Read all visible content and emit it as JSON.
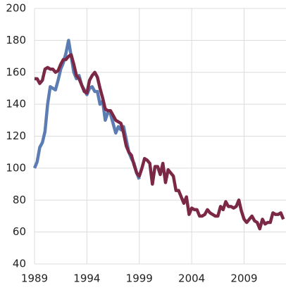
{
  "chart_data": {
    "type": "line",
    "x": [
      1989,
      1989.25,
      1989.5,
      1989.75,
      1990,
      1990.25,
      1990.5,
      1990.75,
      1991,
      1991.25,
      1991.5,
      1991.75,
      1992,
      1992.25,
      1992.5,
      1992.75,
      1993,
      1993.25,
      1993.5,
      1993.75,
      1994,
      1994.25,
      1994.5,
      1994.75,
      1995,
      1995.25,
      1995.5,
      1995.75,
      1996,
      1996.25,
      1996.5,
      1996.75,
      1997,
      1997.25,
      1997.5,
      1997.75,
      1998,
      1998.25,
      1998.5,
      1998.75,
      1999,
      1999.25,
      1999.5,
      1999.75,
      2000,
      2000.25,
      2000.5,
      2000.75,
      2001,
      2001.25,
      2001.5,
      2001.75,
      2002,
      2002.25,
      2002.5,
      2002.75,
      2003,
      2003.25,
      2003.5,
      2003.75,
      2004,
      2004.25,
      2004.5,
      2004.75,
      2005,
      2005.25,
      2005.5,
      2005.75,
      2006,
      2006.25,
      2006.5,
      2006.75,
      2007,
      2007.25,
      2007.5,
      2007.75,
      2008,
      2008.25,
      2008.5,
      2008.75,
      2009,
      2009.25,
      2009.5,
      2009.75,
      2010,
      2010.25,
      2010.5,
      2010.75,
      2011,
      2011.25,
      2011.5,
      2011.75,
      2012,
      2012.25,
      2012.5,
      2012.75
    ],
    "series": [
      {
        "color": "#5b7db4",
        "values": [
          100,
          104,
          113,
          116,
          123,
          140,
          151,
          150,
          149,
          155,
          162,
          166,
          172,
          180,
          170,
          160,
          156,
          158,
          152,
          149,
          146,
          150,
          151,
          148,
          148,
          140,
          142,
          130,
          135,
          134,
          128,
          122,
          126,
          124,
          126,
          118,
          110,
          106,
          103,
          97,
          93,
          null,
          null,
          null,
          null,
          null,
          null,
          null,
          null,
          null,
          null,
          null,
          null,
          null,
          null,
          null,
          null,
          null,
          null,
          null,
          null,
          null,
          null,
          null,
          null,
          null,
          null,
          null,
          null,
          null,
          null,
          null,
          null,
          null,
          null,
          null,
          null,
          null,
          null,
          null,
          null,
          null,
          null,
          null,
          null,
          null,
          null,
          null,
          null,
          null,
          null,
          null,
          null,
          null,
          null,
          null
        ]
      },
      {
        "color": "#7a2845",
        "values": [
          156,
          156,
          153,
          155,
          162,
          163,
          162,
          162,
          160,
          161,
          165,
          168,
          168,
          170,
          171,
          165,
          158,
          156,
          152,
          148,
          147,
          155,
          158,
          160,
          157,
          150,
          144,
          137,
          136,
          136,
          133,
          130,
          129,
          128,
          122,
          114,
          110,
          108,
          102,
          97,
          95,
          100,
          106,
          105,
          103,
          90,
          101,
          101,
          96,
          103,
          91,
          99,
          97,
          95,
          86,
          86,
          82,
          78,
          82,
          71,
          75,
          74,
          74,
          70,
          70,
          71,
          74,
          72,
          71,
          70,
          70,
          76,
          74,
          79,
          76,
          76,
          75,
          76,
          80,
          73,
          68,
          66,
          68,
          70,
          67,
          66,
          62,
          68,
          65,
          66,
          66,
          72,
          71,
          71,
          72,
          68
        ]
      }
    ],
    "xlim": [
      1989,
      2013
    ],
    "ylim": [
      40,
      200
    ],
    "xticks": [
      1989,
      1994,
      1999,
      2004,
      2009
    ],
    "yticks": [
      40,
      60,
      80,
      100,
      120,
      140,
      160,
      180,
      200
    ],
    "grid": true
  }
}
